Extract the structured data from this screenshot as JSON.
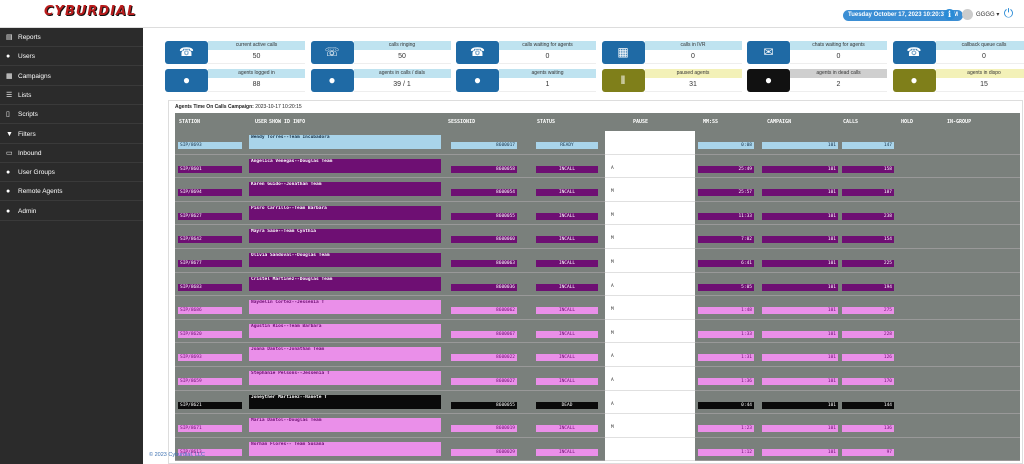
{
  "app": {
    "logo": "CYBURDIAL",
    "datetime": "Tuesday October 17, 2023 10:20:31 AM",
    "user": "GGGG ▾",
    "footer": "© 2023 CyburdiaI, LLC"
  },
  "sidebar": {
    "items": [
      {
        "label": "Reports",
        "icon": "reports-icon",
        "glyph": "▤"
      },
      {
        "label": "Users",
        "icon": "user-icon",
        "glyph": "●"
      },
      {
        "label": "Campaigns",
        "icon": "campaigns-icon",
        "glyph": "▦"
      },
      {
        "label": "Lists",
        "icon": "list-icon",
        "glyph": "☰"
      },
      {
        "label": "Scripts",
        "icon": "script-icon",
        "glyph": "▯"
      },
      {
        "label": "Filters",
        "icon": "filter-icon",
        "glyph": "▼"
      },
      {
        "label": "Inbound",
        "icon": "inbound-icon",
        "glyph": "▭"
      },
      {
        "label": "User Groups",
        "icon": "user-groups-icon",
        "glyph": "●"
      },
      {
        "label": "Remote Agents",
        "icon": "remote-agent-icon",
        "glyph": "●"
      },
      {
        "label": "Admin",
        "icon": "admin-icon",
        "glyph": "●"
      }
    ]
  },
  "stats": [
    {
      "label": "current active calls",
      "value": "50",
      "icon": "phone-icon",
      "glyph": "☎",
      "color": "#1f6aa5",
      "lblbg": "#bfe3f0"
    },
    {
      "label": "calls ringing",
      "value": "50",
      "icon": "ringing-icon",
      "glyph": "☏",
      "color": "#1f6aa5",
      "lblbg": "#bfe3f0"
    },
    {
      "label": "calls waiting for agents",
      "value": "0",
      "icon": "waiting-calls-icon",
      "glyph": "☎",
      "color": "#1f6aa5",
      "lblbg": "#bfe3f0"
    },
    {
      "label": "calls in IVR",
      "value": "0",
      "icon": "ivr-icon",
      "glyph": "▦",
      "color": "#1f6aa5",
      "lblbg": "#bfe3f0"
    },
    {
      "label": "chats waiting for agents",
      "value": "0",
      "icon": "chat-icon",
      "glyph": "✉",
      "color": "#1f6aa5",
      "lblbg": "#bfe3f0"
    },
    {
      "label": "callback queue calls",
      "value": "0",
      "icon": "callback-icon",
      "glyph": "☎",
      "color": "#1f6aa5",
      "lblbg": "#bfe3f0"
    },
    {
      "label": "agents logged in",
      "value": "88",
      "icon": "agents-group-icon",
      "glyph": "●",
      "color": "#1f6aa5",
      "lblbg": "#bfe3f0"
    },
    {
      "label": "agents in calls / dials",
      "value": "39 / 1",
      "icon": "agents-in-calls-icon",
      "glyph": "●",
      "color": "#1f6aa5",
      "lblbg": "#bfe3f0"
    },
    {
      "label": "agents waiting",
      "value": "1",
      "icon": "agents-waiting-icon",
      "glyph": "●",
      "color": "#1f6aa5",
      "lblbg": "#bfe3f0"
    },
    {
      "label": "paused agents",
      "value": "31",
      "icon": "paused-agents-icon",
      "glyph": "‖",
      "color": "#7f7f1a",
      "lblbg": "#f3f1b8"
    },
    {
      "label": "agents in dead calls",
      "value": "2",
      "icon": "dead-calls-icon",
      "glyph": "●",
      "color": "#111111",
      "lblbg": "#cfcfcf"
    },
    {
      "label": "agents in dispo",
      "value": "15",
      "icon": "dispo-icon",
      "glyph": "●",
      "color": "#7f7f1a",
      "lblbg": "#f3f1b8"
    }
  ],
  "panel": {
    "title_prefix": "Agents Time On Calls Campaign:",
    "title_time": "2023-10-17 10:20:15",
    "headers": [
      "STATION",
      "USER",
      "SHOW ID INFO",
      "SESSIONID",
      "STATUS",
      "PAUSE",
      "MM:SS",
      "CAMPAIGN",
      "CALLS",
      "HOLD",
      "IN-GROUP"
    ]
  },
  "rows": [
    {
      "station": "SIP/8693",
      "user": "Wendy Torres--Team Incubadora",
      "session": "8600017",
      "status": "READY",
      "pause": "",
      "mmss": "0:08",
      "campaign": "101",
      "calls": "147",
      "color": "#a9d4ea",
      "text": "#16324a"
    },
    {
      "station": "SIP/8601",
      "user": "Angelica Venegas--Douglas Team",
      "session": "8600058",
      "status": "INCALL",
      "pause": "A",
      "mmss": "25:49",
      "campaign": "101",
      "calls": "158",
      "color": "#6e0f73",
      "text": "#ffffff"
    },
    {
      "station": "SIP/8694",
      "user": "Karen Guido--Jonathan Team",
      "session": "8600054",
      "status": "INCALL",
      "pause": "M",
      "mmss": "25:57",
      "campaign": "101",
      "calls": "187",
      "color": "#6e0f73",
      "text": "#ffffff"
    },
    {
      "station": "SIP/8627",
      "user": "Pisro Carrillo--Team Barbara",
      "session": "8600055",
      "status": "INCALL",
      "pause": "M",
      "mmss": "11:33",
      "campaign": "101",
      "calls": "238",
      "color": "#6e0f73",
      "text": "#ffffff"
    },
    {
      "station": "SIP/8642",
      "user": "Mayra Saxe--Team Cynthia",
      "session": "8600060",
      "status": "INCALL",
      "pause": "M",
      "mmss": "7:02",
      "campaign": "101",
      "calls": "154",
      "color": "#6e0f73",
      "text": "#ffffff"
    },
    {
      "station": "SIP/8677",
      "user": "Olivia Sandoval--Douglas Team",
      "session": "8600063",
      "status": "INCALL",
      "pause": "M",
      "mmss": "6:41",
      "campaign": "101",
      "calls": "225",
      "color": "#6e0f73",
      "text": "#ffffff"
    },
    {
      "station": "SIP/8683",
      "user": "Cristel Martinez--Douglas Team",
      "session": "8600036",
      "status": "INCALL",
      "pause": "A",
      "mmss": "5:05",
      "campaign": "101",
      "calls": "194",
      "color": "#6e0f73",
      "text": "#ffffff"
    },
    {
      "station": "SIP/8686",
      "user": "Naydelin Cortez--Jessenia T",
      "session": "8600062",
      "status": "INCALL",
      "pause": "M",
      "mmss": "1:48",
      "campaign": "101",
      "calls": "275",
      "color": "#ea8fe9",
      "text": "#6e0f73"
    },
    {
      "station": "SIP/8620",
      "user": "Agustin Rios--Team Barbara",
      "session": "8600067",
      "status": "INCALL",
      "pause": "M",
      "mmss": "1:33",
      "campaign": "101",
      "calls": "228",
      "color": "#ea8fe9",
      "text": "#6e0f73"
    },
    {
      "station": "SIP/8693",
      "user": "Joana Dantol--Jonathan Team",
      "session": "8600022",
      "status": "INCALL",
      "pause": "A",
      "mmss": "1:31",
      "campaign": "101",
      "calls": "126",
      "color": "#ea8fe9",
      "text": "#6e0f73"
    },
    {
      "station": "SIP/8659",
      "user": "Stephanie Pelsons--Jessenia T",
      "session": "8600027",
      "status": "INCALL",
      "pause": "A",
      "mmss": "1:36",
      "campaign": "101",
      "calls": "170",
      "color": "#ea8fe9",
      "text": "#6e0f73"
    },
    {
      "station": "SIP/8621",
      "user": "Joneyther Martinez--Nanete T",
      "session": "8600055",
      "status": "DEAD",
      "pause": "A",
      "mmss": "0:44",
      "campaign": "101",
      "calls": "144",
      "color": "#0a0a0a",
      "text": "#ffffff"
    },
    {
      "station": "SIP/8671",
      "user": "Maria Dantol--Douglas Team",
      "session": "8600019",
      "status": "INCALL",
      "pause": "M",
      "mmss": "1:23",
      "campaign": "101",
      "calls": "136",
      "color": "#ea8fe9",
      "text": "#6e0f73"
    },
    {
      "station": "SIP/8613",
      "user": "Norhan Flores-- Team Susana",
      "session": "8600029",
      "status": "INCALL",
      "pause": "",
      "mmss": "1:12",
      "campaign": "101",
      "calls": "97",
      "color": "#ea8fe9",
      "text": "#6e0f73"
    }
  ]
}
